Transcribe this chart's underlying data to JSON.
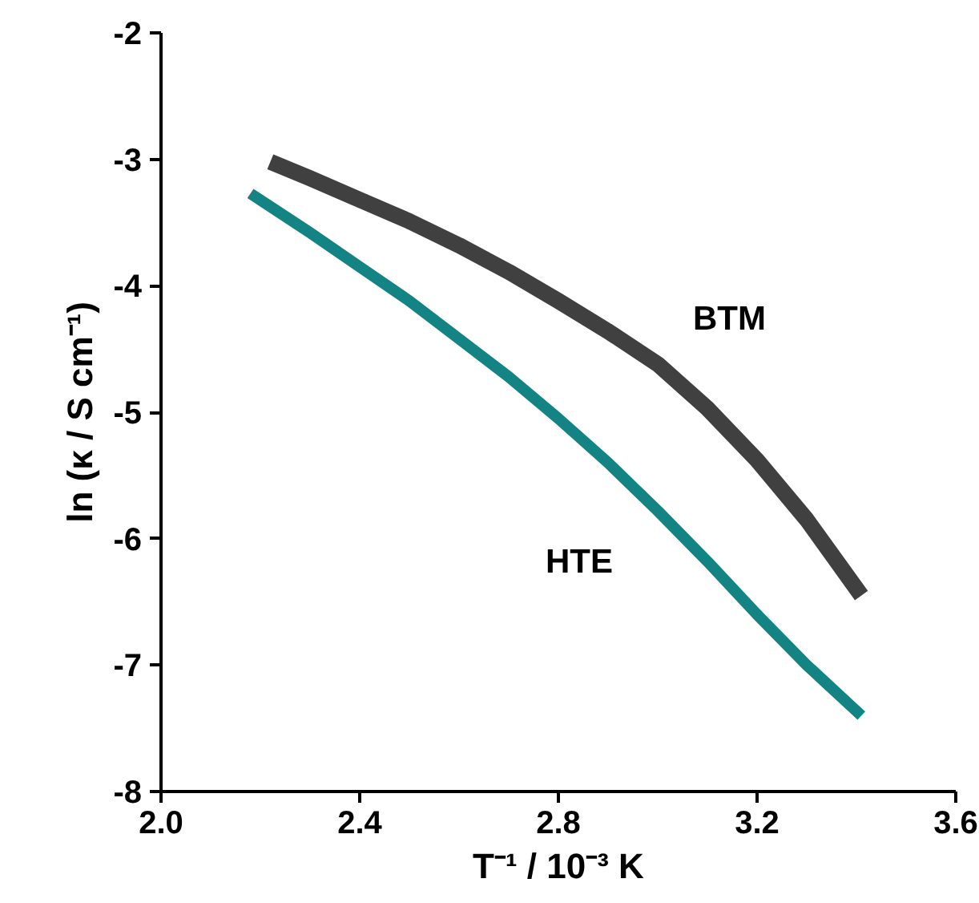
{
  "chart_data": {
    "type": "line",
    "xlabel": "T⁻¹ / 10⁻³ K",
    "ylabel": "ln (κ / S cm⁻¹)",
    "xlim": [
      2.0,
      3.6
    ],
    "ylim": [
      -8,
      -2
    ],
    "xticks": [
      {
        "value": 2.0,
        "label": "2.0"
      },
      {
        "value": 2.4,
        "label": "2.4"
      },
      {
        "value": 2.8,
        "label": "2.8"
      },
      {
        "value": 3.2,
        "label": "3.2"
      },
      {
        "value": 3.6,
        "label": "3.6"
      }
    ],
    "yticks": [
      -8,
      -7,
      -6,
      -5,
      -4,
      -3,
      -2
    ],
    "grid": false,
    "legend": false,
    "marker": "none",
    "line_style": "solid",
    "series": [
      {
        "name": "BTM",
        "color": "#404040",
        "x": [
          2.22,
          2.3,
          2.4,
          2.5,
          2.6,
          2.7,
          2.8,
          2.9,
          3.0,
          3.1,
          3.2,
          3.3,
          3.41
        ],
        "values": [
          -3.02,
          -3.15,
          -3.32,
          -3.49,
          -3.68,
          -3.89,
          -4.12,
          -4.36,
          -4.62,
          -4.97,
          -5.38,
          -5.85,
          -6.45
        ]
      },
      {
        "name": "HTE",
        "color": "#138383",
        "x": [
          2.18,
          2.3,
          2.4,
          2.5,
          2.6,
          2.7,
          2.8,
          2.9,
          3.0,
          3.1,
          3.2,
          3.3,
          3.41
        ],
        "values": [
          -3.27,
          -3.58,
          -3.85,
          -4.12,
          -4.42,
          -4.72,
          -5.05,
          -5.4,
          -5.78,
          -6.18,
          -6.6,
          -7.0,
          -7.4
        ]
      }
    ]
  }
}
